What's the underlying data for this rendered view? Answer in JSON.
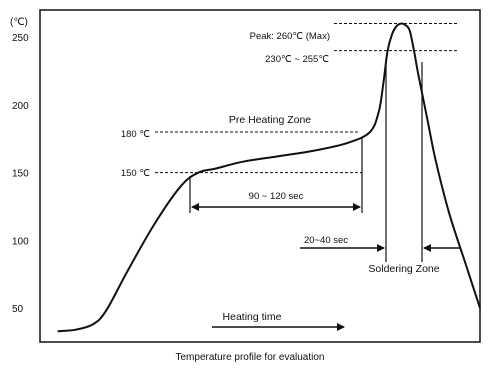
{
  "chart_data": {
    "type": "line",
    "title": "Temperature profile for evaluation",
    "ylabel": "(℃)",
    "xlabel": "Heating time",
    "yticks": [
      {
        "value": 250,
        "label": "250"
      },
      {
        "value": 200,
        "label": "200"
      },
      {
        "value": 150,
        "label": "150"
      },
      {
        "value": 100,
        "label": "100"
      },
      {
        "value": 50,
        "label": "50"
      }
    ],
    "ylim": [
      25,
      270
    ],
    "xlim": [
      0,
      100
    ],
    "grid": false,
    "series": [
      {
        "x": [
          4,
          8,
          12,
          15,
          20,
          26,
          32,
          36,
          40,
          46,
          54,
          62,
          70,
          75,
          77,
          78,
          79,
          80,
          81,
          82,
          83,
          84,
          85,
          86,
          88,
          90,
          93,
          97,
          100
        ],
        "y": [
          33,
          34,
          38,
          48,
          78,
          112,
          140,
          150,
          153,
          158,
          162,
          166,
          172,
          180,
          195,
          215,
          240,
          252,
          258,
          260,
          259,
          255,
          240,
          222,
          190,
          158,
          120,
          80,
          50
        ]
      }
    ],
    "annotations": {
      "peak": {
        "label": "Peak: 260℃ (Max)",
        "value": 260
      },
      "soldering_band": {
        "label": "230℃ ~ 255℃",
        "value": 240
      },
      "preheat_high": {
        "label": "180 ℃",
        "value": 180
      },
      "preheat_low": {
        "label": "150 ℃",
        "value": 150
      },
      "preheat_zone": {
        "label": "Pre Heating Zone"
      },
      "preheat_duration": {
        "label": "90 ~ 120 sec"
      },
      "soldering_duration": {
        "label": "20~40 sec"
      },
      "soldering_zone": {
        "label": "Soldering Zone"
      }
    }
  }
}
